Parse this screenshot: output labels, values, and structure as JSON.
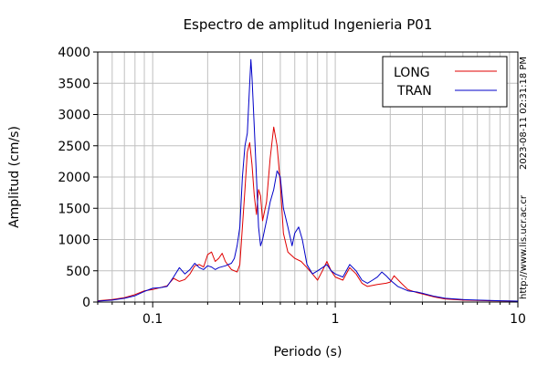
{
  "chart_data": {
    "type": "line",
    "title": "Espectro de amplitud Ingenieria P01",
    "xlabel": "Periodo (s)",
    "ylabel": "Amplitud (cm/s)",
    "x_scale": "log",
    "xlim": [
      0.05,
      10
    ],
    "ylim": [
      0,
      4000
    ],
    "x_ticks": [
      0.1,
      1,
      10
    ],
    "x_tick_labels": [
      "0.1",
      "1",
      "10"
    ],
    "y_ticks": [
      0,
      500,
      1000,
      1500,
      2000,
      2500,
      3000,
      3500,
      4000
    ],
    "y_tick_labels": [
      "0",
      "500",
      "1000",
      "1500",
      "2000",
      "2500",
      "3000",
      "3500",
      "4000"
    ],
    "grid": true,
    "legend_position": "top-right",
    "series": [
      {
        "name": "LONG",
        "color": "#e00000",
        "points": [
          [
            0.05,
            20
          ],
          [
            0.06,
            40
          ],
          [
            0.07,
            70
          ],
          [
            0.08,
            120
          ],
          [
            0.09,
            180
          ],
          [
            0.1,
            200
          ],
          [
            0.11,
            230
          ],
          [
            0.12,
            260
          ],
          [
            0.13,
            380
          ],
          [
            0.14,
            330
          ],
          [
            0.15,
            360
          ],
          [
            0.16,
            450
          ],
          [
            0.17,
            580
          ],
          [
            0.18,
            600
          ],
          [
            0.19,
            560
          ],
          [
            0.2,
            760
          ],
          [
            0.21,
            800
          ],
          [
            0.22,
            650
          ],
          [
            0.23,
            700
          ],
          [
            0.24,
            780
          ],
          [
            0.25,
            650
          ],
          [
            0.27,
            520
          ],
          [
            0.29,
            480
          ],
          [
            0.3,
            600
          ],
          [
            0.31,
            1200
          ],
          [
            0.32,
            1800
          ],
          [
            0.33,
            2400
          ],
          [
            0.34,
            2550
          ],
          [
            0.35,
            2200
          ],
          [
            0.36,
            1700
          ],
          [
            0.37,
            1400
          ],
          [
            0.38,
            1800
          ],
          [
            0.39,
            1700
          ],
          [
            0.4,
            1300
          ],
          [
            0.42,
            1600
          ],
          [
            0.44,
            2300
          ],
          [
            0.46,
            2800
          ],
          [
            0.48,
            2500
          ],
          [
            0.5,
            1900
          ],
          [
            0.52,
            1100
          ],
          [
            0.55,
            800
          ],
          [
            0.6,
            700
          ],
          [
            0.65,
            650
          ],
          [
            0.7,
            550
          ],
          [
            0.75,
            450
          ],
          [
            0.8,
            350
          ],
          [
            0.85,
            500
          ],
          [
            0.9,
            650
          ],
          [
            0.95,
            500
          ],
          [
            1.0,
            400
          ],
          [
            1.1,
            350
          ],
          [
            1.2,
            550
          ],
          [
            1.3,
            450
          ],
          [
            1.4,
            300
          ],
          [
            1.5,
            250
          ],
          [
            1.7,
            280
          ],
          [
            1.9,
            300
          ],
          [
            2.0,
            320
          ],
          [
            2.1,
            420
          ],
          [
            2.3,
            300
          ],
          [
            2.5,
            200
          ],
          [
            2.8,
            150
          ],
          [
            3.0,
            130
          ],
          [
            3.5,
            80
          ],
          [
            4.0,
            50
          ],
          [
            5.0,
            30
          ],
          [
            6.0,
            25
          ],
          [
            7.0,
            20
          ],
          [
            8.0,
            18
          ],
          [
            10.0,
            15
          ]
        ]
      },
      {
        "name": "TRAN",
        "color": "#0000c8",
        "points": [
          [
            0.05,
            15
          ],
          [
            0.06,
            30
          ],
          [
            0.07,
            60
          ],
          [
            0.08,
            100
          ],
          [
            0.09,
            170
          ],
          [
            0.1,
            220
          ],
          [
            0.11,
            230
          ],
          [
            0.12,
            250
          ],
          [
            0.13,
            400
          ],
          [
            0.14,
            550
          ],
          [
            0.15,
            450
          ],
          [
            0.16,
            520
          ],
          [
            0.17,
            620
          ],
          [
            0.18,
            550
          ],
          [
            0.19,
            520
          ],
          [
            0.2,
            580
          ],
          [
            0.21,
            560
          ],
          [
            0.22,
            520
          ],
          [
            0.23,
            550
          ],
          [
            0.25,
            580
          ],
          [
            0.27,
            620
          ],
          [
            0.28,
            700
          ],
          [
            0.29,
            900
          ],
          [
            0.3,
            1200
          ],
          [
            0.31,
            2000
          ],
          [
            0.32,
            2500
          ],
          [
            0.33,
            2700
          ],
          [
            0.34,
            3500
          ],
          [
            0.345,
            3880
          ],
          [
            0.35,
            3600
          ],
          [
            0.36,
            2800
          ],
          [
            0.37,
            2000
          ],
          [
            0.38,
            1200
          ],
          [
            0.39,
            900
          ],
          [
            0.4,
            1000
          ],
          [
            0.42,
            1300
          ],
          [
            0.44,
            1600
          ],
          [
            0.46,
            1800
          ],
          [
            0.48,
            2100
          ],
          [
            0.5,
            2000
          ],
          [
            0.52,
            1500
          ],
          [
            0.55,
            1200
          ],
          [
            0.58,
            900
          ],
          [
            0.6,
            1100
          ],
          [
            0.63,
            1200
          ],
          [
            0.66,
            1000
          ],
          [
            0.7,
            600
          ],
          [
            0.75,
            450
          ],
          [
            0.8,
            500
          ],
          [
            0.85,
            550
          ],
          [
            0.9,
            600
          ],
          [
            0.95,
            500
          ],
          [
            1.0,
            450
          ],
          [
            1.1,
            400
          ],
          [
            1.2,
            600
          ],
          [
            1.3,
            500
          ],
          [
            1.4,
            350
          ],
          [
            1.5,
            300
          ],
          [
            1.6,
            350
          ],
          [
            1.7,
            400
          ],
          [
            1.8,
            480
          ],
          [
            1.9,
            420
          ],
          [
            2.0,
            350
          ],
          [
            2.2,
            250
          ],
          [
            2.5,
            180
          ],
          [
            2.8,
            160
          ],
          [
            3.0,
            140
          ],
          [
            3.5,
            90
          ],
          [
            4.0,
            60
          ],
          [
            5.0,
            40
          ],
          [
            6.0,
            30
          ],
          [
            7.0,
            25
          ],
          [
            8.0,
            20
          ],
          [
            10.0,
            15
          ]
        ]
      }
    ]
  },
  "side_labels": {
    "timestamp": "2023-08-11 02:31:18 PM",
    "url": "http://www.lis.ucr.ac.cr"
  }
}
